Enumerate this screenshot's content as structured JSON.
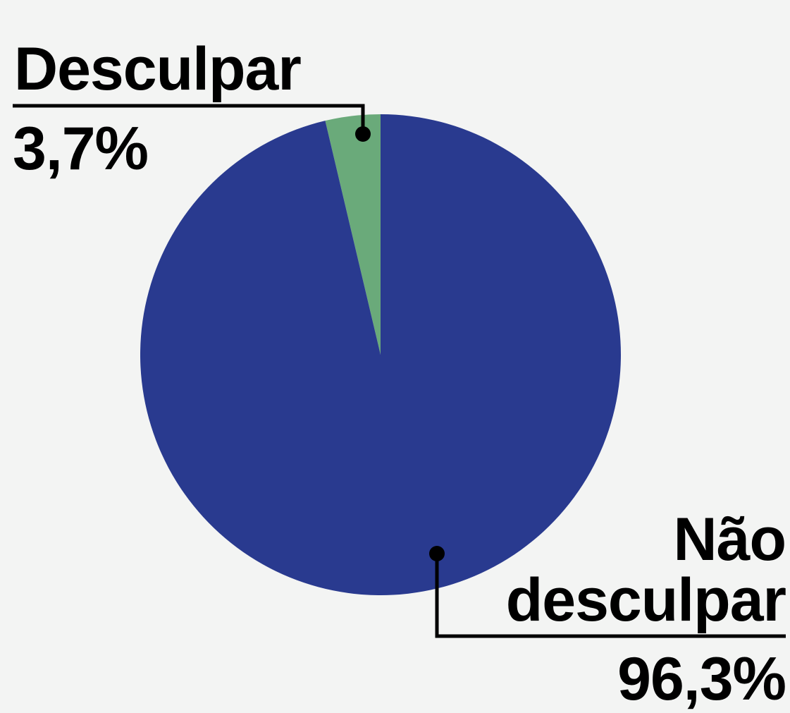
{
  "chart_data": {
    "type": "pie",
    "categories": [
      "Desculpar",
      "Não desculpar"
    ],
    "values": [
      3.7,
      96.3
    ],
    "value_labels": [
      "3,7%",
      "96,3%"
    ],
    "colors": [
      "#6aaa7a",
      "#293a8f"
    ]
  }
}
